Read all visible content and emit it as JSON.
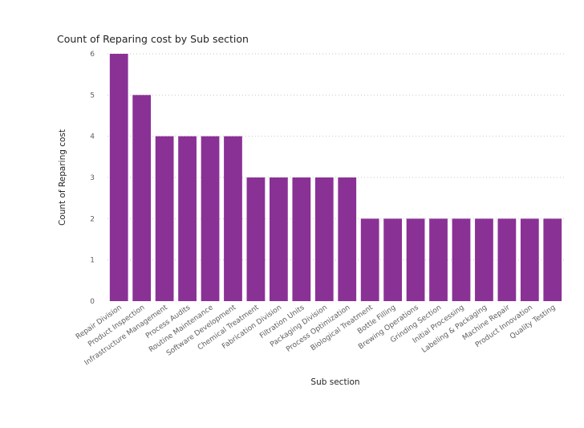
{
  "chart_data": {
    "type": "bar",
    "title": "Count of Reparing cost by Sub section",
    "xlabel": "Sub section",
    "ylabel": "Count of Reparing cost",
    "categories": [
      "Repair Division",
      "Product Inspection",
      "Infrastructure Management",
      "Process Audits",
      "Routine Maintenance",
      "Software Development",
      "Chemical Treatment",
      "Fabrication Division",
      "Filtration Units",
      "Packaging Division",
      "Process Optimization",
      "Biological Treatment",
      "Bottle Filling",
      "Brewing Operations",
      "Grinding Section",
      "Initial Processing",
      "Labeling & Packaging",
      "Machine Repair",
      "Product Innovation",
      "Quality Testing"
    ],
    "values": [
      6,
      5,
      4,
      4,
      4,
      4,
      3,
      3,
      3,
      3,
      3,
      2,
      2,
      2,
      2,
      2,
      2,
      2,
      2,
      2
    ],
    "y_ticks": [
      "0",
      "1",
      "2",
      "3",
      "4",
      "5",
      "6"
    ],
    "ylim": [
      0,
      6
    ],
    "grid": true,
    "bar_color": "#8a3196",
    "label_rotation": -35
  }
}
